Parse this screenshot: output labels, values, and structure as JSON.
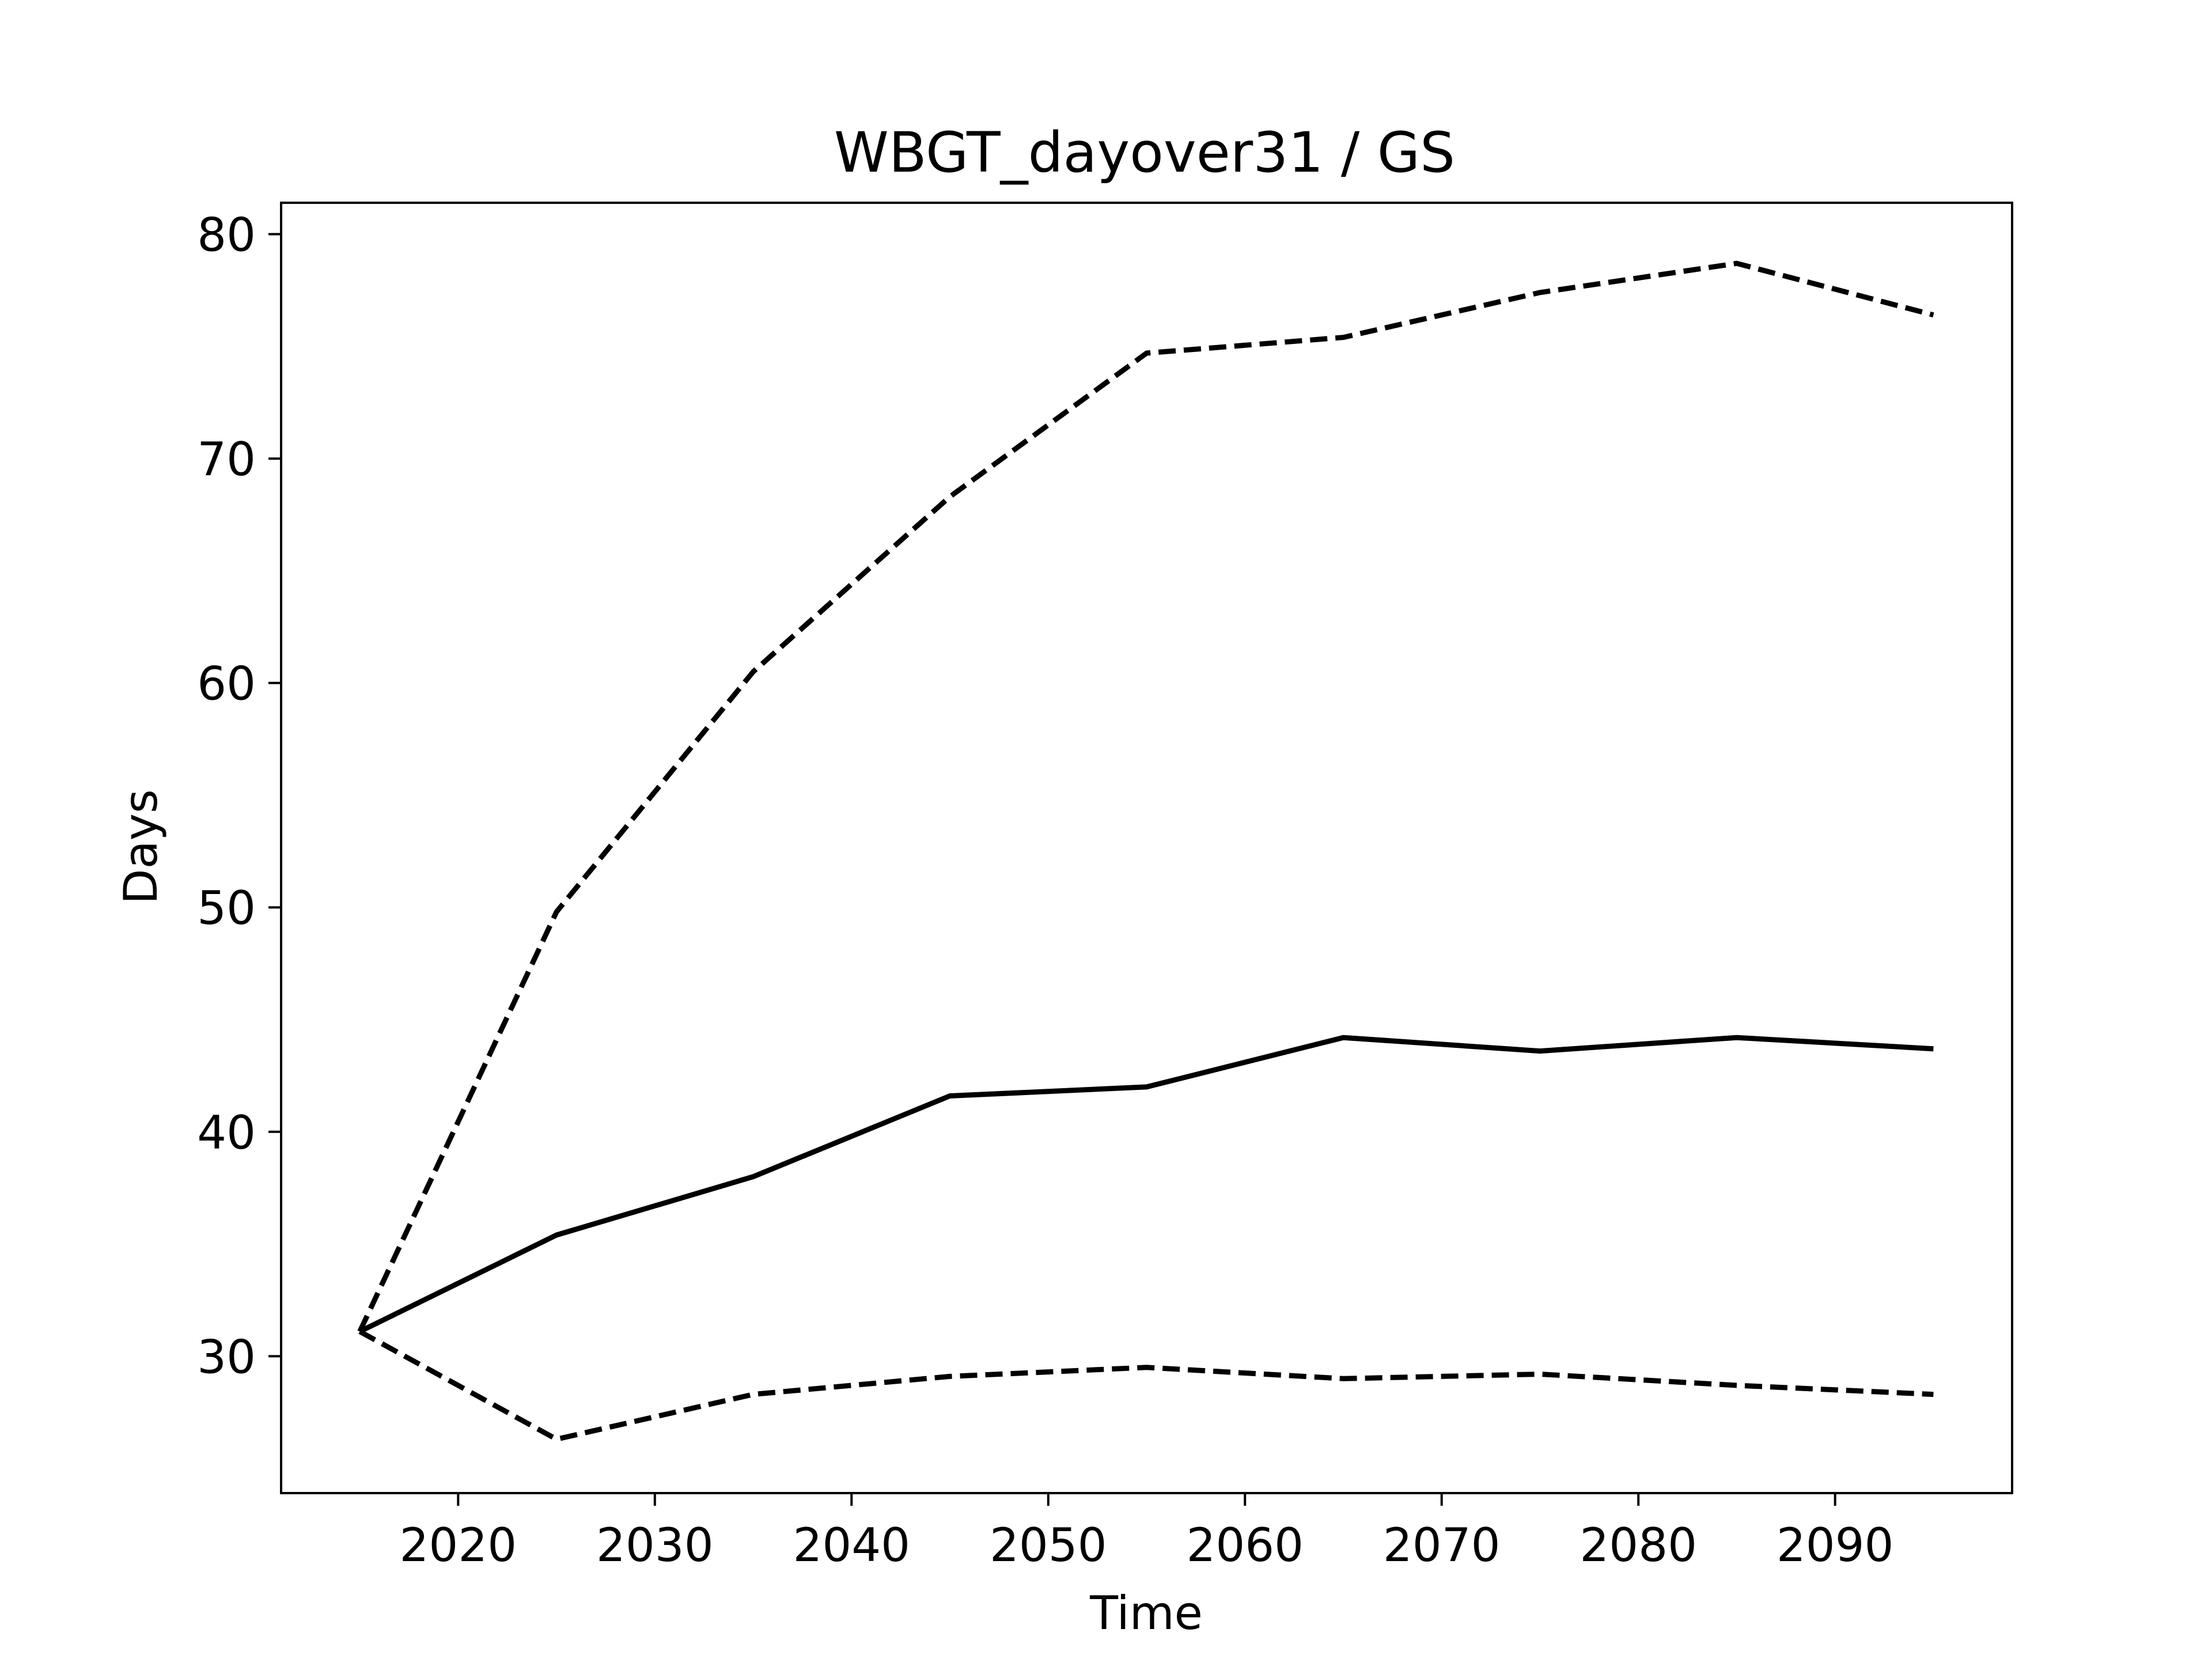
{
  "chart_data": {
    "type": "line",
    "title": "WBGT_dayover31 / GS",
    "xlabel": "Time",
    "ylabel": "Days",
    "xlim": [
      2011,
      2099
    ],
    "ylim": [
      23.9,
      81.4
    ],
    "xticks": [
      2020,
      2030,
      2040,
      2050,
      2060,
      2070,
      2080,
      2090
    ],
    "yticks": [
      30,
      40,
      50,
      60,
      70,
      80
    ],
    "x": [
      2015,
      2025,
      2035,
      2045,
      2055,
      2065,
      2075,
      2085,
      2095
    ],
    "grid": false,
    "legend": "none",
    "colors": {
      "line": "#000000",
      "background": "#ffffff",
      "frame": "#000000"
    },
    "series": [
      {
        "style": "solid",
        "values": [
          31.1,
          35.4,
          38.0,
          41.6,
          42.0,
          44.2,
          43.6,
          44.2,
          43.7
        ]
      },
      {
        "style": "dashed",
        "values": [
          31.1,
          49.8,
          60.5,
          68.3,
          74.7,
          75.4,
          77.4,
          78.7,
          76.4
        ]
      },
      {
        "style": "dashed",
        "values": [
          31.1,
          26.3,
          28.3,
          29.1,
          29.5,
          29.0,
          29.2,
          28.7,
          28.3
        ]
      }
    ]
  }
}
